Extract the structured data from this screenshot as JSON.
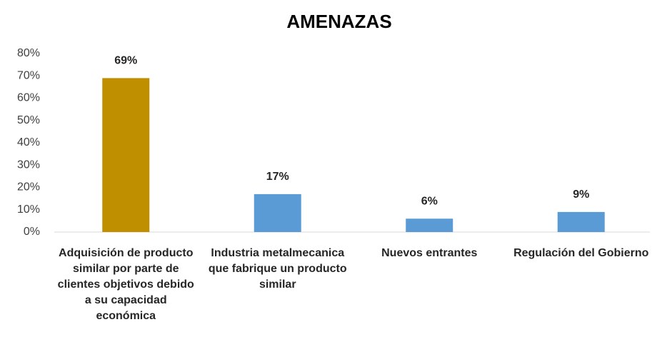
{
  "chart_data": {
    "type": "bar",
    "title": "AMENAZAS",
    "categories": [
      "Adquisición de producto similar por parte de clientes objetivos debido a su capacidad económica",
      "Industria metalmecanica que fabrique un producto similar",
      "Nuevos entrantes",
      "Regulación del Gobierno"
    ],
    "values": [
      69,
      17,
      6,
      9
    ],
    "value_labels": [
      "69%",
      "17%",
      "6%",
      "9%"
    ],
    "colors": [
      "#bf8f00",
      "#5b9bd5",
      "#5b9bd5",
      "#5b9bd5"
    ],
    "ylim": [
      0,
      80
    ],
    "yticks": [
      {
        "value": 0,
        "label": "0%"
      },
      {
        "value": 10,
        "label": "10%"
      },
      {
        "value": 20,
        "label": "20%"
      },
      {
        "value": 30,
        "label": "30%"
      },
      {
        "value": 40,
        "label": "40%"
      },
      {
        "value": 50,
        "label": "50%"
      },
      {
        "value": 60,
        "label": "60%"
      },
      {
        "value": 70,
        "label": "70%"
      },
      {
        "value": 80,
        "label": "80%"
      }
    ],
    "grid": false
  }
}
